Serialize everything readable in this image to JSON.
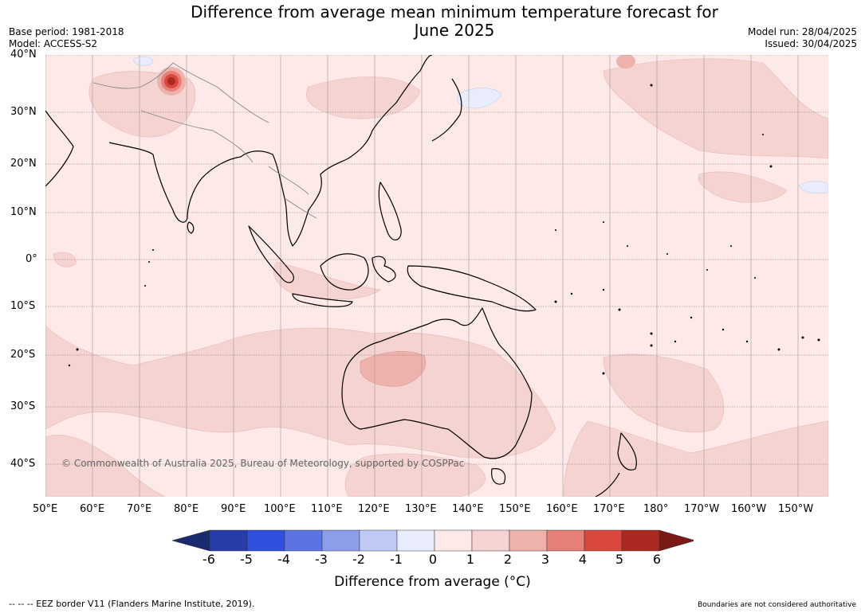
{
  "header": {
    "title_line1": "Difference from average mean minimum temperature forecast for",
    "title_line2": "June 2025",
    "base_period": "Base period: 1981-2018",
    "model": "Model: ACCESS-S2",
    "model_run": "Model run: 28/04/2025",
    "issued": "Issued: 30/04/2025"
  },
  "map": {
    "copyright": "© Commonwealth of Australia 2025, Bureau of Meteorology, supported by COSPPac",
    "lat_labels": [
      "40°N",
      "30°N",
      "20°N",
      "10°N",
      "0°",
      "10°S",
      "20°S",
      "30°S",
      "40°S"
    ],
    "lon_labels": [
      "50°E",
      "60°E",
      "70°E",
      "80°E",
      "90°E",
      "100°E",
      "110°E",
      "120°E",
      "130°E",
      "140°E",
      "150°E",
      "160°E",
      "170°E",
      "180°",
      "170°W",
      "160°W",
      "150°W"
    ]
  },
  "colorbar": {
    "ticks": [
      "-6",
      "-5",
      "-4",
      "-3",
      "-2",
      "-1",
      "0",
      "1",
      "2",
      "3",
      "4",
      "5",
      "6"
    ],
    "colors": [
      "#1a2a6e",
      "#263ca8",
      "#2f4fdd",
      "#5c74e3",
      "#8c9ee9",
      "#c0c9f3",
      "#e9ecfb",
      "#fce9e8",
      "#f5d3d1",
      "#eeb2ad",
      "#e68078",
      "#d9473d",
      "#aa2a22",
      "#7a1a15"
    ],
    "title": "Difference from average ($^\\circ$C)",
    "title_display": "Difference from average (°C)"
  },
  "footer": {
    "eez": "--  --  -- EEZ border V11 (Flanders Marine Institute, 2019).",
    "boundaries": "Boundaries are not considered authoritative"
  }
}
